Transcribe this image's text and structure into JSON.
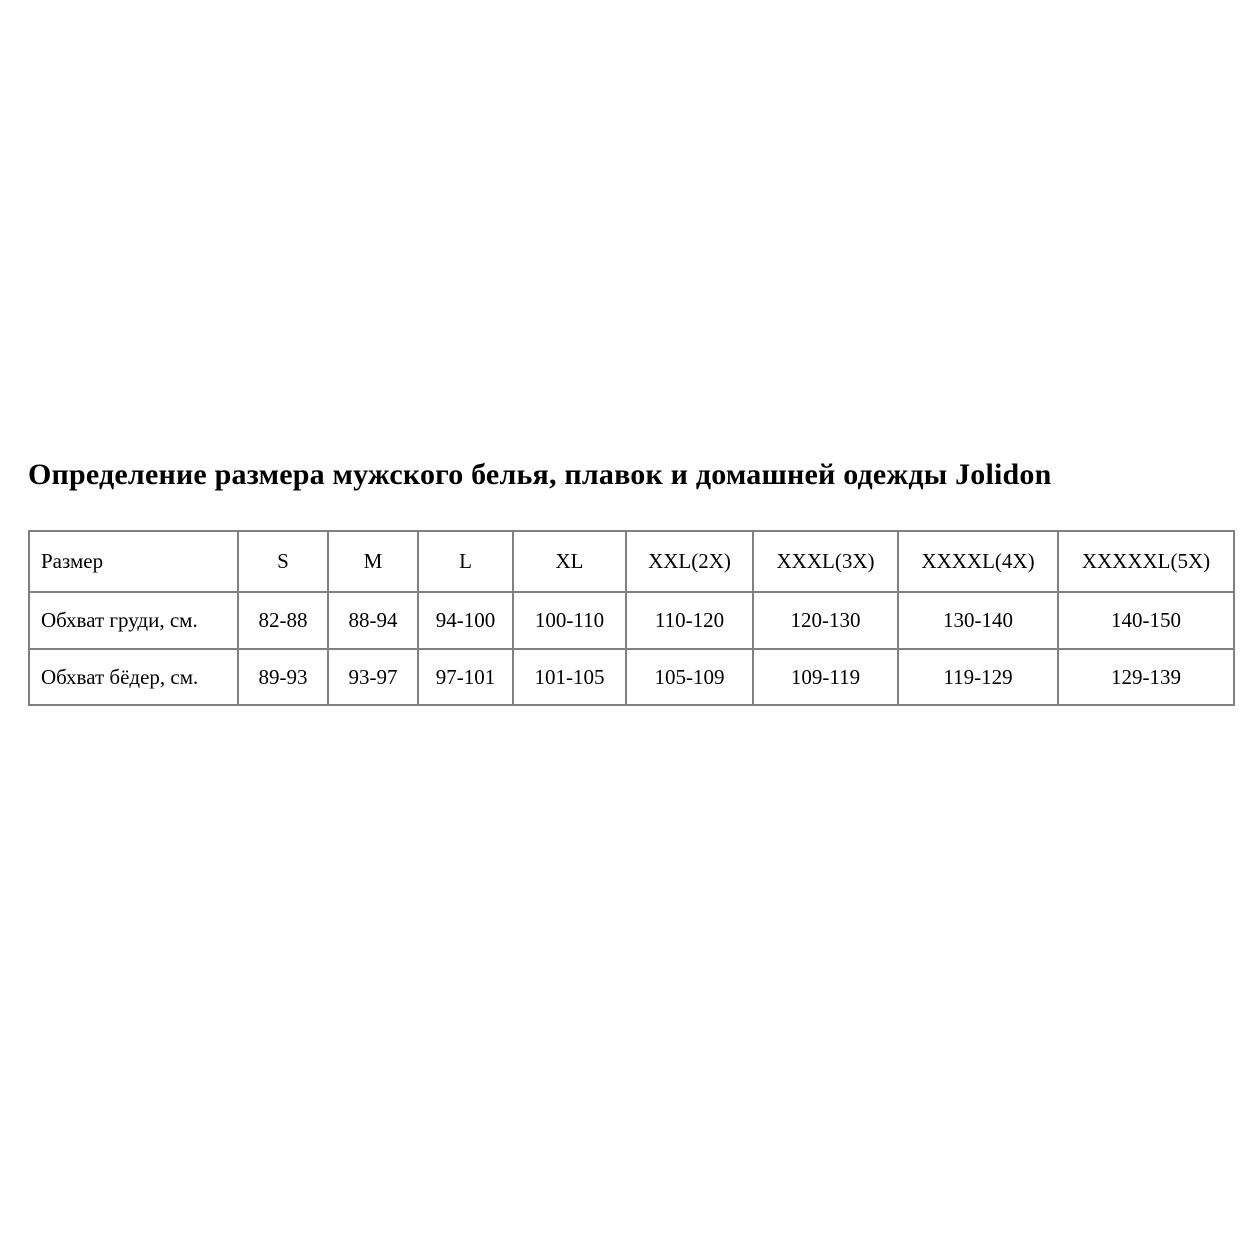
{
  "page": {
    "title": "Определение размера мужского белья, плавок и домашней одежды Jolidon",
    "background_color": "#ffffff",
    "text_color": "#000000"
  },
  "size_table": {
    "border_color": "#808080",
    "columns": [
      "Размер",
      "S",
      "M",
      "L",
      "XL",
      "XXL(2X)",
      "XXXL(3X)",
      "XXXXL(4X)",
      "XXXXXL(5X)"
    ],
    "rows": [
      {
        "label": "Обхват груди, см.",
        "values": [
          "82-88",
          "88-94",
          "94-100",
          "100-110",
          "110-120",
          "120-130",
          "130-140",
          "140-150"
        ]
      },
      {
        "label": "Обхват бёдер, см.",
        "values": [
          "89-93",
          "93-97",
          "97-101",
          "101-105",
          "105-109",
          "109-119",
          "119-129",
          "129-139"
        ]
      }
    ]
  },
  "chart_data": {
    "type": "table",
    "title": "Определение размера мужского белья, плавок и домашней одежды Jolidon",
    "columns": [
      "Размер",
      "S",
      "M",
      "L",
      "XL",
      "XXL(2X)",
      "XXXL(3X)",
      "XXXXL(4X)",
      "XXXXXL(5X)"
    ],
    "rows": [
      [
        "Обхват груди, см.",
        "82-88",
        "88-94",
        "94-100",
        "100-110",
        "110-120",
        "120-130",
        "130-140",
        "140-150"
      ],
      [
        "Обхват бёдер, см.",
        "89-93",
        "93-97",
        "97-101",
        "101-105",
        "105-109",
        "109-119",
        "119-129",
        "129-139"
      ]
    ]
  }
}
